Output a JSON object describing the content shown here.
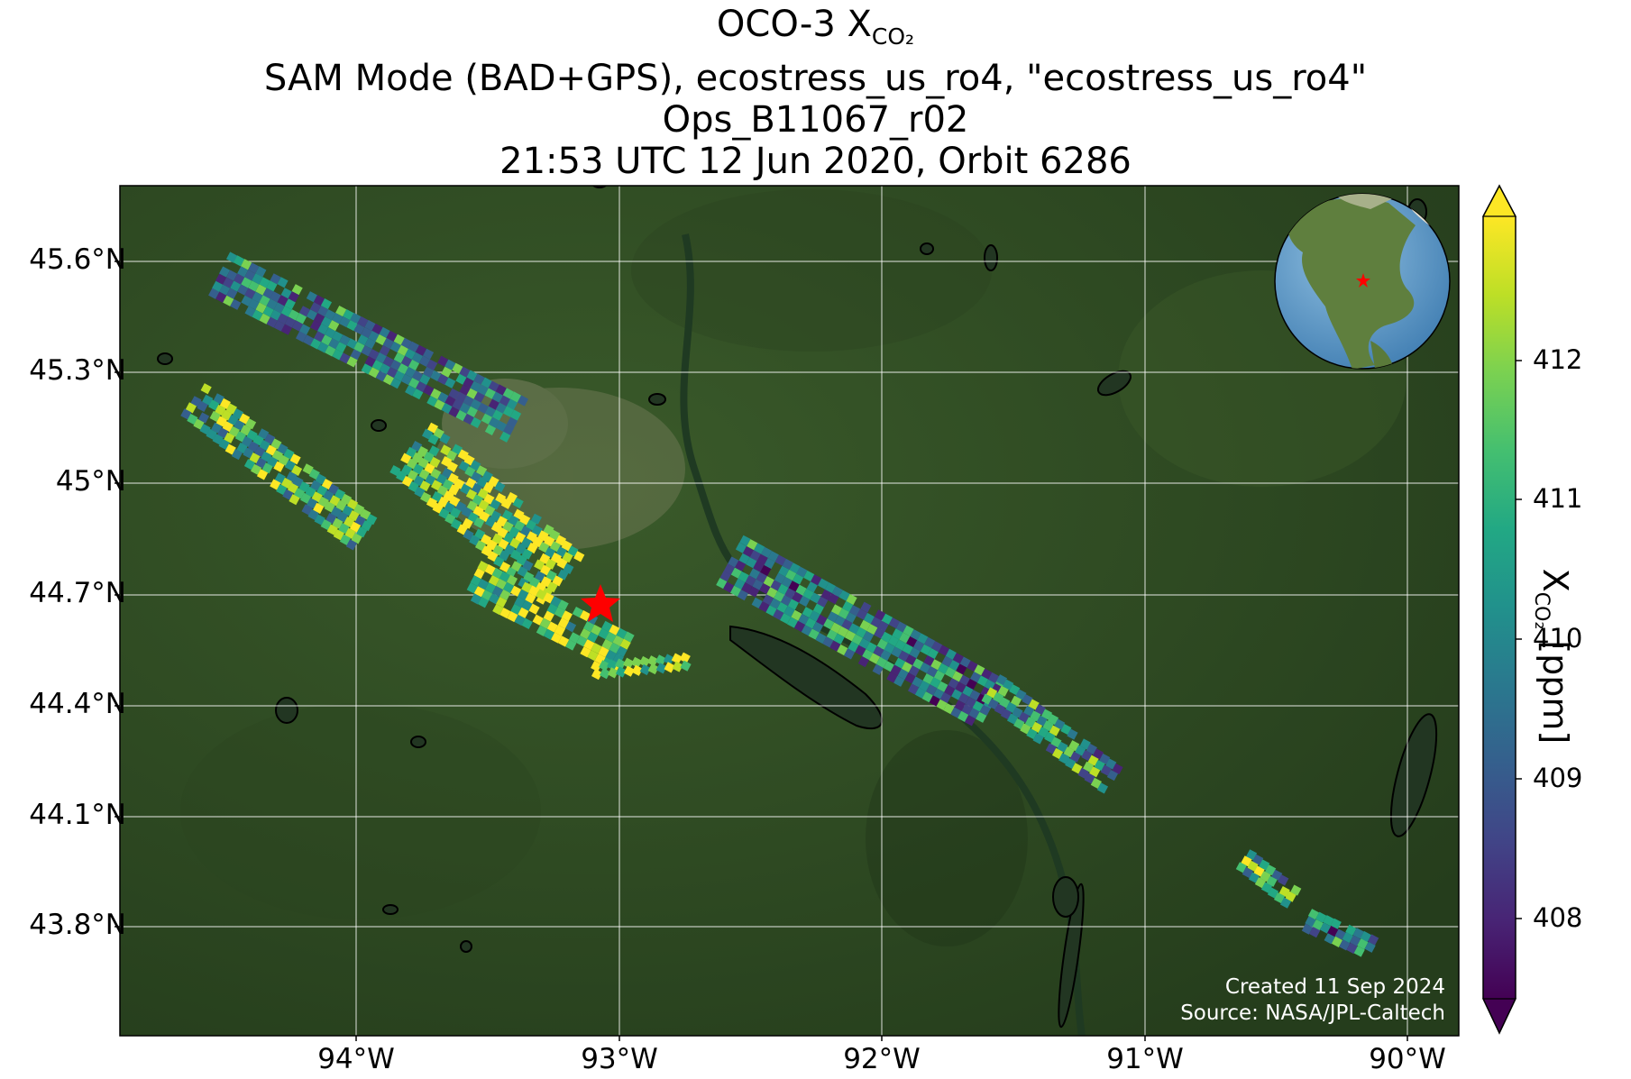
{
  "title": {
    "line1_prefix": "OCO-3 X",
    "line1_sub": "CO₂",
    "line2": "SAM Mode (BAD+GPS), ecostress_us_ro4, \"ecostress_us_ro4\"",
    "line3": "Ops_B11067_r02",
    "line4": "21:53 UTC 12 Jun 2020, Orbit 6286"
  },
  "lat_labels": [
    "45.6°N",
    "45.3°N",
    "45°N",
    "44.7°N",
    "44.4°N",
    "44.1°N",
    "43.8°N"
  ],
  "lon_labels": [
    "94°W",
    "93°W",
    "92°W",
    "91°W",
    "90°W"
  ],
  "colorbar": {
    "ticks": [
      "412",
      "411",
      "410",
      "409",
      "408"
    ],
    "label_prefix": "X",
    "label_sub": "CO₂",
    "label_suffix": " [ppm]",
    "colormap": "viridis",
    "extend": "both"
  },
  "credit": {
    "created": "Created 11 Sep 2024",
    "source": "Source: NASA/JPL-Caltech"
  },
  "target": {
    "marker": "star",
    "color": "#ff0000"
  },
  "globe_inset": {
    "marker": "star",
    "color": "#ff0000"
  },
  "colors": {
    "background_map": "#2f4a22",
    "gridline": "#ffffff",
    "lake_outline": "#000000"
  }
}
